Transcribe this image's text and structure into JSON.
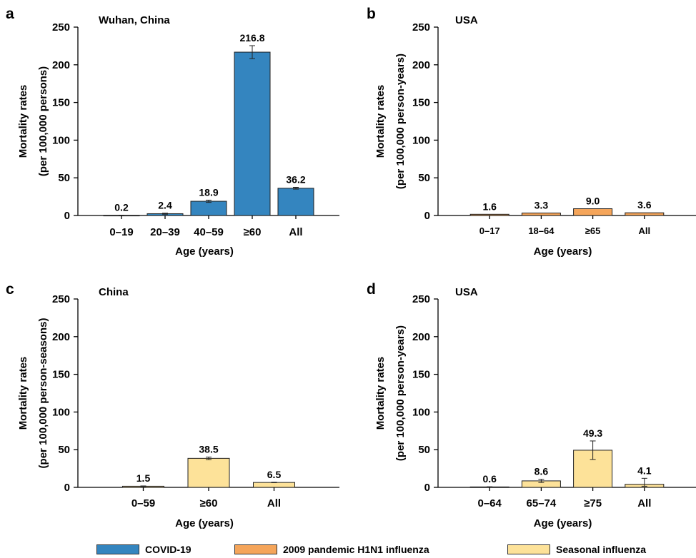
{
  "colors": {
    "covid": "#3485bf",
    "h1n1": "#f5a55a",
    "seasonal": "#fde299",
    "bar_edge": "#1f1f1f",
    "axis": "#000000"
  },
  "legend": [
    {
      "label": "COVID-19",
      "color": "#3485bf"
    },
    {
      "label": "2009 pandemic H1N1 influenza",
      "color": "#f5a55a"
    },
    {
      "label": "Seasonal influenza",
      "color": "#fde299"
    }
  ],
  "chart_data": [
    {
      "panel": "a",
      "type": "bar",
      "title": "Wuhan, China",
      "xlabel": "Age (years)",
      "ylabel": [
        "Mortality rates",
        "(per 100,000 persons)"
      ],
      "ylim": [
        0,
        250
      ],
      "yticks": [
        0,
        50,
        100,
        150,
        200,
        250
      ],
      "categories": [
        "0–19",
        "20–39",
        "40–59",
        "≥60",
        "All"
      ],
      "values": [
        0.2,
        2.4,
        18.9,
        216.8,
        36.2
      ],
      "value_labels": [
        "0.2",
        "2.4",
        "18.9",
        "216.8",
        "36.2"
      ],
      "error_bars": [
        [
          0.1,
          0.3
        ],
        [
          1.7,
          3.1
        ],
        [
          17.4,
          20.4
        ],
        [
          208.2,
          225.4
        ],
        [
          35.0,
          37.4
        ]
      ],
      "series": [
        {
          "name": "COVID-19",
          "color": "#3485bf"
        }
      ],
      "grid": false
    },
    {
      "panel": "b",
      "type": "bar",
      "title": "USA",
      "xlabel": "Age (years)",
      "ylabel": [
        "Mortality rates",
        "(per 100,000 person-years)"
      ],
      "ylim": [
        0,
        250
      ],
      "yticks": [
        0,
        50,
        100,
        150,
        200,
        250
      ],
      "categories": [
        "0–17",
        "18–64",
        "≥65",
        "All"
      ],
      "values": [
        1.6,
        3.3,
        9.0,
        3.6
      ],
      "value_labels": [
        "1.6",
        "3.3",
        "9.0",
        "3.6"
      ],
      "error_bars": null,
      "series": [
        {
          "name": "2009 pandemic H1N1 influenza",
          "color": "#f5a55a"
        }
      ],
      "grid": false
    },
    {
      "panel": "c",
      "type": "bar",
      "title": "China",
      "xlabel": "Age (years)",
      "ylabel": [
        "Mortality rates",
        "(per 100,000 person-seasons)"
      ],
      "ylim": [
        0,
        250
      ],
      "yticks": [
        0,
        50,
        100,
        150,
        200,
        250
      ],
      "categories": [
        "0–59",
        "≥60",
        "All"
      ],
      "values": [
        1.5,
        38.5,
        6.5
      ],
      "value_labels": [
        "1.5",
        "38.5",
        "6.5"
      ],
      "error_bars": [
        [
          1.1,
          1.9
        ],
        [
          36.8,
          40.2
        ],
        [
          6.2,
          6.8
        ]
      ],
      "series": [
        {
          "name": "Seasonal influenza",
          "color": "#fde299"
        }
      ],
      "grid": false
    },
    {
      "panel": "d",
      "type": "bar",
      "title": "USA",
      "xlabel": "Age (years)",
      "ylabel": [
        "Mortality rates",
        "(per 100,000 person-years)"
      ],
      "ylim": [
        0,
        250
      ],
      "yticks": [
        0,
        50,
        100,
        150,
        200,
        250
      ],
      "categories": [
        "0–64",
        "65–74",
        "≥75",
        "All"
      ],
      "values": [
        0.6,
        8.6,
        49.3,
        4.1
      ],
      "value_labels": [
        "0.6",
        "8.6",
        "49.3",
        "4.1"
      ],
      "error_bars": [
        [
          0.4,
          0.8
        ],
        [
          6.5,
          10.7
        ],
        [
          37.0,
          61.6
        ],
        [
          1.5,
          12.0
        ]
      ],
      "series": [
        {
          "name": "Seasonal influenza",
          "color": "#fde299"
        }
      ],
      "grid": false
    }
  ]
}
